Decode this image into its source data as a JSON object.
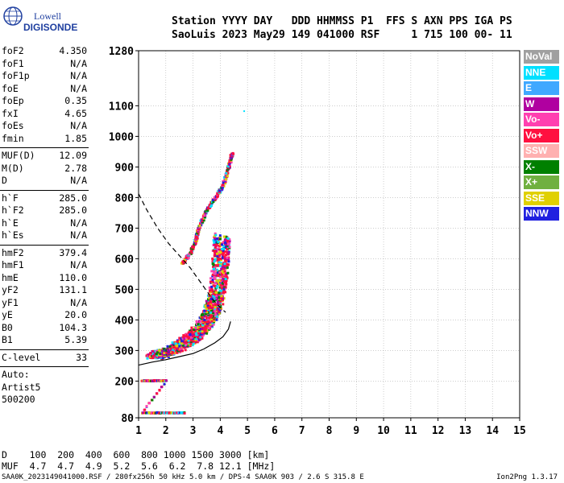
{
  "logo": {
    "line1": "Lowell",
    "line2": "DIGISONDE"
  },
  "header": {
    "line1": "Station YYYY DAY   DDD HHMMSS P1  FFS S AXN PPS IGA PS",
    "line2": "SaoLuis 2023 May29 149 041000 RSF     1 715 100 00- 11"
  },
  "params": [
    {
      "name": "foF2",
      "value": "4.350"
    },
    {
      "name": "foF1",
      "value": "N/A"
    },
    {
      "name": "foF1p",
      "value": "N/A"
    },
    {
      "name": "foE",
      "value": "N/A"
    },
    {
      "name": "foEp",
      "value": "0.35"
    },
    {
      "name": "fxI",
      "value": "4.65"
    },
    {
      "name": "foEs",
      "value": "N/A"
    },
    {
      "name": "fmin",
      "value": "1.85"
    },
    {
      "name": "MUF(D)",
      "value": "12.09",
      "sep_before": true
    },
    {
      "name": "M(D)",
      "value": "2.78"
    },
    {
      "name": "D",
      "value": "N/A"
    },
    {
      "name": "h`F",
      "value": "285.0",
      "sep_before": true
    },
    {
      "name": "h`F2",
      "value": "285.0"
    },
    {
      "name": "h`E",
      "value": "N/A"
    },
    {
      "name": "h`Es",
      "value": "N/A"
    },
    {
      "name": "hmF2",
      "value": "379.4",
      "sep_before": true
    },
    {
      "name": "hmF1",
      "value": "N/A"
    },
    {
      "name": "hmE",
      "value": "110.0"
    },
    {
      "name": "yF2",
      "value": "131.1"
    },
    {
      "name": "yF1",
      "value": "N/A"
    },
    {
      "name": "yE",
      "value": "20.0"
    },
    {
      "name": "B0",
      "value": "104.3"
    },
    {
      "name": "B1",
      "value": "5.39"
    },
    {
      "name": "C-level",
      "value": "33",
      "sep_before": true
    },
    {
      "name": "Auto:",
      "value": "",
      "sep_before": true
    },
    {
      "name": "Artist5",
      "value": ""
    },
    {
      "name": "500200",
      "value": ""
    }
  ],
  "legend": [
    {
      "label": "NoVal",
      "color": "#a0a0a0"
    },
    {
      "label": "NNE",
      "color": "#00e0ff"
    },
    {
      "label": "E",
      "color": "#40a8ff"
    },
    {
      "label": "W",
      "color": "#b000a0"
    },
    {
      "label": "Vo-",
      "color": "#ff40b0"
    },
    {
      "label": "Vo+",
      "color": "#ff1040"
    },
    {
      "label": "SSW",
      "color": "#ffb0b0"
    },
    {
      "label": "X-",
      "color": "#008000"
    },
    {
      "label": "X+",
      "color": "#70b040"
    },
    {
      "label": "SSE",
      "color": "#e0d000"
    },
    {
      "label": "NNW",
      "color": "#2020e0"
    }
  ],
  "muf_table": {
    "line1": "D    100  200  400  600  800 1000 1500 3000 [km]",
    "line2": "MUF  4.7  4.7  4.9  5.2  5.6  6.2  7.8 12.1 [MHz]"
  },
  "footer": "SAA0K_2023149041000.RSF / 280fx256h 50 kHz 5.0 km / DPS-4 SAA0K 903 / 2.6 S 315.8 E",
  "version": "Ion2Png 1.3.17",
  "chart_data": {
    "type": "scatter",
    "title": "",
    "xlabel": "",
    "ylabel": "",
    "xlim": [
      1,
      15
    ],
    "ylim": [
      80,
      1280
    ],
    "x_ticks": [
      1,
      2,
      3,
      4,
      5,
      6,
      7,
      8,
      9,
      10,
      11,
      12,
      13,
      14,
      15
    ],
    "y_ticks": [
      80,
      200,
      300,
      400,
      500,
      600,
      700,
      800,
      900,
      1000,
      1100,
      1280
    ],
    "grid": true,
    "series": [
      {
        "name": "O-trace",
        "kind": "echoes",
        "points": [
          [
            1.85,
            285
          ],
          [
            2.0,
            290
          ],
          [
            2.2,
            295
          ],
          [
            2.5,
            305
          ],
          [
            2.8,
            320
          ],
          [
            3.0,
            330
          ],
          [
            3.2,
            345
          ],
          [
            3.4,
            360
          ],
          [
            3.6,
            380
          ],
          [
            3.8,
            400
          ],
          [
            3.95,
            430
          ],
          [
            4.05,
            460
          ],
          [
            4.15,
            500
          ],
          [
            4.25,
            560
          ],
          [
            4.3,
            620
          ],
          [
            4.33,
            680
          ]
        ]
      },
      {
        "name": "X-trace",
        "kind": "echoes",
        "points": [
          [
            2.6,
            590
          ],
          [
            2.9,
            620
          ],
          [
            3.1,
            660
          ],
          [
            3.2,
            700
          ],
          [
            3.5,
            760
          ],
          [
            3.8,
            800
          ],
          [
            4.1,
            840
          ],
          [
            4.3,
            900
          ],
          [
            4.45,
            950
          ]
        ]
      },
      {
        "name": "Es",
        "kind": "echoes",
        "points": [
          [
            1.1,
            205
          ],
          [
            1.4,
            205
          ],
          [
            1.7,
            205
          ],
          [
            2.0,
            205
          ],
          [
            1.1,
            100
          ],
          [
            1.5,
            100
          ],
          [
            1.9,
            100
          ],
          [
            2.3,
            100
          ],
          [
            2.7,
            100
          ]
        ]
      },
      {
        "name": "profile",
        "kind": "line",
        "color": "#000000",
        "dashed": false,
        "points": [
          [
            1.0,
            252
          ],
          [
            1.5,
            262
          ],
          [
            2.0,
            270
          ],
          [
            2.5,
            280
          ],
          [
            3.0,
            290
          ],
          [
            3.4,
            305
          ],
          [
            3.8,
            325
          ],
          [
            4.1,
            345
          ],
          [
            4.3,
            370
          ],
          [
            4.38,
            395
          ]
        ]
      },
      {
        "name": "MUF-curve",
        "kind": "line",
        "color": "#000000",
        "dashed": true,
        "points": [
          [
            1.0,
            812
          ],
          [
            1.3,
            760
          ],
          [
            1.7,
            700
          ],
          [
            2.1,
            650
          ],
          [
            2.5,
            610
          ],
          [
            2.9,
            570
          ],
          [
            3.3,
            520
          ],
          [
            3.7,
            470
          ],
          [
            4.0,
            440
          ],
          [
            4.2,
            425
          ]
        ]
      }
    ],
    "isolated_points": [
      [
        4.85,
        1085
      ]
    ]
  }
}
